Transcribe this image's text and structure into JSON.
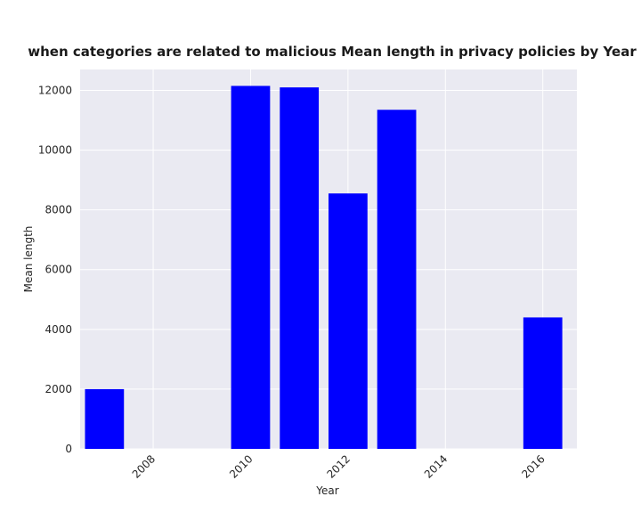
{
  "chart_data": {
    "type": "bar",
    "title": "when categories are related to malicious Mean length in privacy policies by Year",
    "xlabel": "Year",
    "ylabel": "Mean length",
    "x": [
      2007,
      2010,
      2011,
      2012,
      2013,
      2016
    ],
    "values": [
      2000,
      12150,
      12100,
      8550,
      11350,
      4400
    ],
    "xlim": [
      2006.5,
      2016.7
    ],
    "ylim": [
      0,
      12700
    ],
    "xticks": [
      2008,
      2010,
      2012,
      2014,
      2016
    ],
    "xtick_labels": [
      "2008",
      "2010",
      "2012",
      "2014",
      "2016"
    ],
    "yticks": [
      0,
      2000,
      4000,
      6000,
      8000,
      10000,
      12000
    ],
    "ytick_labels": [
      "0",
      "2000",
      "4000",
      "6000",
      "8000",
      "10000",
      "12000"
    ],
    "grid": true,
    "colors": {
      "bar": "#0000ff",
      "plot_background": "#eaeaf2",
      "grid": "#ffffff",
      "text": "#262626"
    }
  }
}
